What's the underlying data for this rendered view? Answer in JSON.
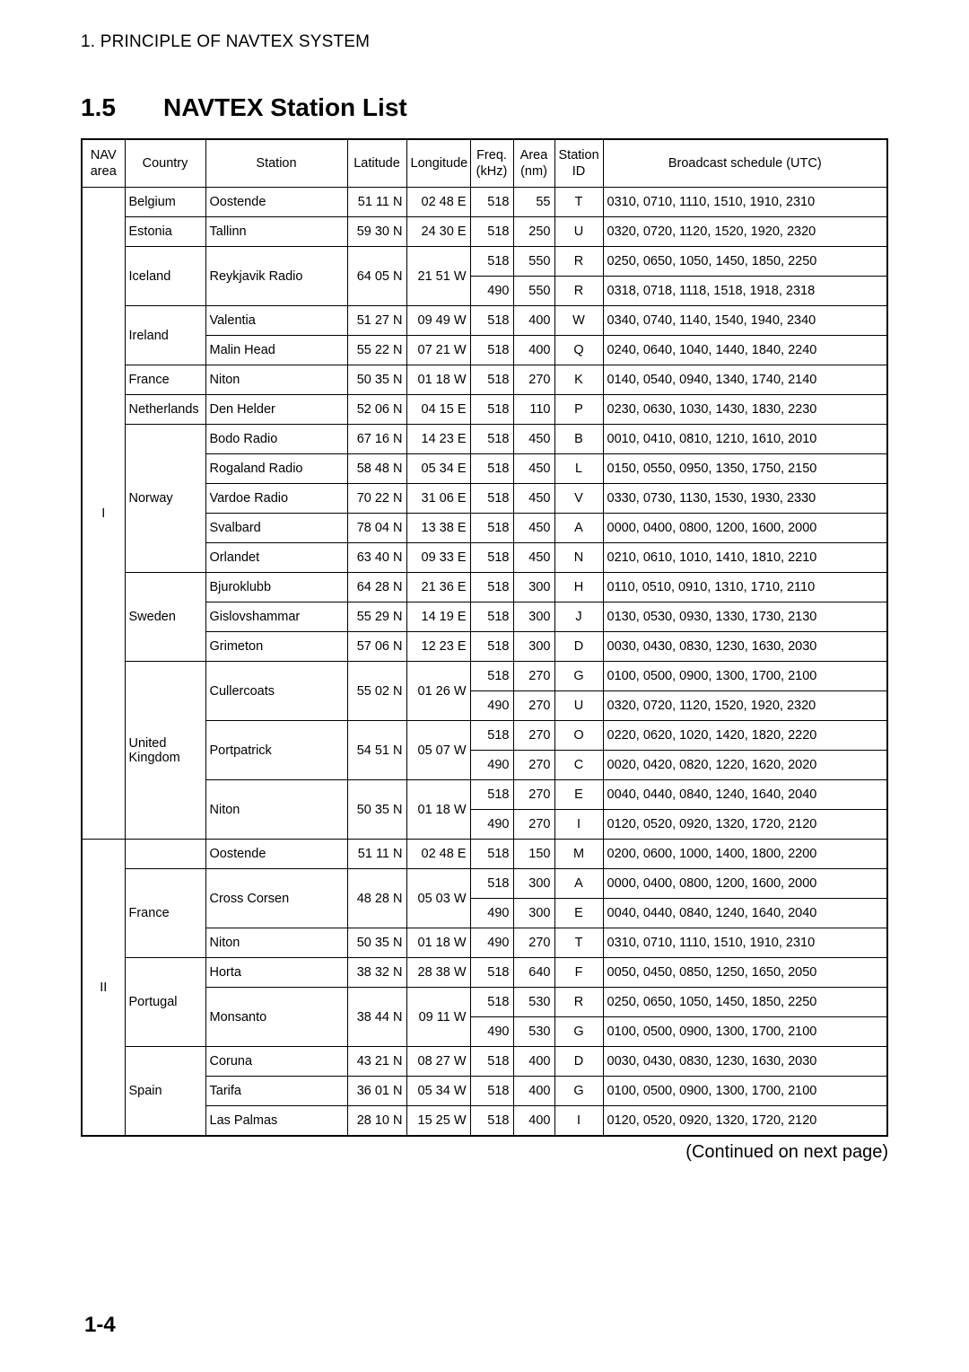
{
  "chapter_head": "1.  PRINCIPLE OF NAVTEX SYSTEM",
  "section_num": "1.5",
  "section_title": "NAVTEX Station List",
  "continued_text": "(Continued on next page)",
  "page_number": "1-4",
  "columns": [
    {
      "key": "nav",
      "label": "NAV\narea"
    },
    {
      "key": "country",
      "label": "Country"
    },
    {
      "key": "station",
      "label": "Station"
    },
    {
      "key": "lat",
      "label": "Latitude"
    },
    {
      "key": "lon",
      "label": "Longitude"
    },
    {
      "key": "freq",
      "label": "Freq.\n(kHz)"
    },
    {
      "key": "area",
      "label": "Area\n(nm)"
    },
    {
      "key": "sid",
      "label": "Station\nID"
    },
    {
      "key": "sched",
      "label": "Broadcast schedule (UTC)"
    }
  ],
  "rows": [
    {
      "nav": "I",
      "nav_span": 22,
      "country": "Belgium",
      "country_span": 1,
      "station": "Oostende",
      "station_span": 1,
      "lat": "51 11 N",
      "lat_span": 1,
      "lon": "02 48 E",
      "lon_span": 1,
      "freq": "518",
      "area": "55",
      "sid": "T",
      "sched": "0310, 0710, 1110, 1510, 1910, 2310"
    },
    {
      "country": "Estonia",
      "country_span": 1,
      "station": "Tallinn",
      "station_span": 1,
      "lat": "59 30 N",
      "lat_span": 1,
      "lon": "24 30 E",
      "lon_span": 1,
      "freq": "518",
      "area": "250",
      "sid": "U",
      "sched": "0320, 0720, 1120, 1520, 1920, 2320"
    },
    {
      "country": "Iceland",
      "country_span": 2,
      "station": "Reykjavik Radio",
      "station_span": 2,
      "lat": "64 05 N",
      "lat_span": 2,
      "lon": "21 51 W",
      "lon_span": 2,
      "freq": "518",
      "area": "550",
      "sid": "R",
      "sched": "0250, 0650, 1050, 1450, 1850, 2250"
    },
    {
      "freq": "490",
      "area": "550",
      "sid": "R",
      "sched": "0318, 0718, 1118, 1518, 1918, 2318"
    },
    {
      "country": "Ireland",
      "country_span": 2,
      "station": "Valentia",
      "station_span": 1,
      "lat": "51 27 N",
      "lat_span": 1,
      "lon": "09 49 W",
      "lon_span": 1,
      "freq": "518",
      "area": "400",
      "sid": "W",
      "sched": "0340, 0740, 1140, 1540, 1940, 2340"
    },
    {
      "station": "Malin Head",
      "station_span": 1,
      "lat": "55 22 N",
      "lat_span": 1,
      "lon": "07 21 W",
      "lon_span": 1,
      "freq": "518",
      "area": "400",
      "sid": "Q",
      "sched": "0240, 0640, 1040, 1440, 1840, 2240"
    },
    {
      "country": "France",
      "country_span": 1,
      "station": "Niton",
      "station_span": 1,
      "lat": "50 35 N",
      "lat_span": 1,
      "lon": "01 18 W",
      "lon_span": 1,
      "freq": "518",
      "area": "270",
      "sid": "K",
      "sched": "0140, 0540, 0940, 1340, 1740, 2140"
    },
    {
      "country": "Netherlands",
      "country_span": 1,
      "station": "Den Helder",
      "station_span": 1,
      "lat": "52 06 N",
      "lat_span": 1,
      "lon": "04 15 E",
      "lon_span": 1,
      "freq": "518",
      "area": "110",
      "sid": "P",
      "sched": "0230, 0630, 1030, 1430, 1830, 2230"
    },
    {
      "country": "Norway",
      "country_span": 5,
      "station": "Bodo Radio",
      "station_span": 1,
      "lat": "67 16 N",
      "lat_span": 1,
      "lon": "14 23 E",
      "lon_span": 1,
      "freq": "518",
      "area": "450",
      "sid": "B",
      "sched": "0010, 0410, 0810, 1210, 1610, 2010"
    },
    {
      "station": "Rogaland Radio",
      "station_span": 1,
      "lat": "58 48 N",
      "lat_span": 1,
      "lon": "05 34 E",
      "lon_span": 1,
      "freq": "518",
      "area": "450",
      "sid": "L",
      "sched": "0150, 0550, 0950, 1350, 1750, 2150"
    },
    {
      "station": "Vardoe Radio",
      "station_span": 1,
      "lat": "70 22 N",
      "lat_span": 1,
      "lon": "31 06 E",
      "lon_span": 1,
      "freq": "518",
      "area": "450",
      "sid": "V",
      "sched": "0330, 0730, 1130, 1530, 1930, 2330"
    },
    {
      "station": "Svalbard",
      "station_span": 1,
      "lat": "78 04 N",
      "lat_span": 1,
      "lon": "13 38 E",
      "lon_span": 1,
      "freq": "518",
      "area": "450",
      "sid": "A",
      "sched": "0000, 0400, 0800, 1200, 1600, 2000"
    },
    {
      "station": "Orlandet",
      "station_span": 1,
      "lat": "63 40 N",
      "lat_span": 1,
      "lon": "09 33 E",
      "lon_span": 1,
      "freq": "518",
      "area": "450",
      "sid": "N",
      "sched": "0210, 0610, 1010, 1410, 1810, 2210"
    },
    {
      "country": "Sweden",
      "country_span": 3,
      "station": "Bjuroklubb",
      "station_span": 1,
      "lat": "64 28 N",
      "lat_span": 1,
      "lon": "21 36 E",
      "lon_span": 1,
      "freq": "518",
      "area": "300",
      "sid": "H",
      "sched": "0110, 0510, 0910, 1310, 1710, 2110"
    },
    {
      "station": "Gislovshammar",
      "station_span": 1,
      "lat": "55 29 N",
      "lat_span": 1,
      "lon": "14 19 E",
      "lon_span": 1,
      "freq": "518",
      "area": "300",
      "sid": "J",
      "sched": "0130, 0530, 0930, 1330, 1730, 2130"
    },
    {
      "station": "Grimeton",
      "station_span": 1,
      "lat": "57 06 N",
      "lat_span": 1,
      "lon": "12 23 E",
      "lon_span": 1,
      "freq": "518",
      "area": "300",
      "sid": "D",
      "sched": "0030, 0430, 0830, 1230, 1630, 2030"
    },
    {
      "country": "United Kingdom",
      "country_span": 6,
      "station": "Cullercoats",
      "station_span": 2,
      "lat": "55 02 N",
      "lat_span": 2,
      "lon": "01 26 W",
      "lon_span": 2,
      "freq": "518",
      "area": "270",
      "sid": "G",
      "sched": "0100, 0500, 0900, 1300, 1700, 2100"
    },
    {
      "freq": "490",
      "area": "270",
      "sid": "U",
      "sched": "0320, 0720, 1120, 1520, 1920, 2320"
    },
    {
      "station": "Portpatrick",
      "station_span": 2,
      "lat": "54 51 N",
      "lat_span": 2,
      "lon": "05 07 W",
      "lon_span": 2,
      "freq": "518",
      "area": "270",
      "sid": "O",
      "sched": "0220, 0620, 1020, 1420, 1820, 2220"
    },
    {
      "freq": "490",
      "area": "270",
      "sid": "C",
      "sched": "0020, 0420, 0820, 1220, 1620, 2020"
    },
    {
      "station": "Niton",
      "station_span": 2,
      "lat": "50 35 N",
      "lat_span": 2,
      "lon": "01 18 W",
      "lon_span": 2,
      "freq": "518",
      "area": "270",
      "sid": "E",
      "sched": "0040, 0440, 0840, 1240, 1640, 2040"
    },
    {
      "freq": "490",
      "area": "270",
      "sid": "I",
      "sched": "0120, 0520, 0920, 1320, 1720, 2120"
    },
    {
      "nav": "II",
      "nav_span": 10,
      "country": "",
      "country_span": 1,
      "station": "Oostende",
      "station_span": 1,
      "lat": "51 11 N",
      "lat_span": 1,
      "lon": "02 48 E",
      "lon_span": 1,
      "freq": "518",
      "area": "150",
      "sid": "M",
      "sched": "0200, 0600, 1000, 1400, 1800, 2200"
    },
    {
      "country": "France",
      "country_span": 3,
      "station": "Cross Corsen",
      "station_span": 2,
      "lat": "48 28 N",
      "lat_span": 2,
      "lon": "05 03 W",
      "lon_span": 2,
      "freq": "518",
      "area": "300",
      "sid": "A",
      "sched": "0000, 0400, 0800, 1200, 1600, 2000"
    },
    {
      "freq": "490",
      "area": "300",
      "sid": "E",
      "sched": "0040, 0440, 0840, 1240, 1640, 2040"
    },
    {
      "station": "Niton",
      "station_span": 1,
      "lat": "50 35 N",
      "lat_span": 1,
      "lon": "01 18 W",
      "lon_span": 1,
      "freq": "490",
      "area": "270",
      "sid": "T",
      "sched": "0310, 0710, 1110, 1510, 1910, 2310"
    },
    {
      "country": "Portugal",
      "country_span": 3,
      "station": "Horta",
      "station_span": 1,
      "lat": "38 32 N",
      "lat_span": 1,
      "lon": "28 38 W",
      "lon_span": 1,
      "freq": "518",
      "area": "640",
      "sid": "F",
      "sched": "0050, 0450, 0850, 1250, 1650, 2050"
    },
    {
      "station": "Monsanto",
      "station_span": 2,
      "lat": "38 44 N",
      "lat_span": 2,
      "lon": "09 11 W",
      "lon_span": 2,
      "freq": "518",
      "area": "530",
      "sid": "R",
      "sched": "0250, 0650, 1050, 1450, 1850, 2250"
    },
    {
      "freq": "490",
      "area": "530",
      "sid": "G",
      "sched": "0100, 0500, 0900, 1300, 1700, 2100"
    },
    {
      "country": "Spain",
      "country_span": 3,
      "station": "Coruna",
      "station_span": 1,
      "lat": "43 21 N",
      "lat_span": 1,
      "lon": "08 27 W",
      "lon_span": 1,
      "freq": "518",
      "area": "400",
      "sid": "D",
      "sched": "0030, 0430, 0830, 1230, 1630, 2030"
    },
    {
      "station": "Tarifa",
      "station_span": 1,
      "lat": "36 01 N",
      "lat_span": 1,
      "lon": "05 34 W",
      "lon_span": 1,
      "freq": "518",
      "area": "400",
      "sid": "G",
      "sched": "0100, 0500, 0900, 1300, 1700, 2100"
    },
    {
      "station": "Las Palmas",
      "station_span": 1,
      "lat": "28 10 N",
      "lat_span": 1,
      "lon": "15 25 W",
      "lon_span": 1,
      "freq": "518",
      "area": "400",
      "sid": "I",
      "sched": "0120, 0520, 0920, 1320, 1720, 2120"
    }
  ]
}
